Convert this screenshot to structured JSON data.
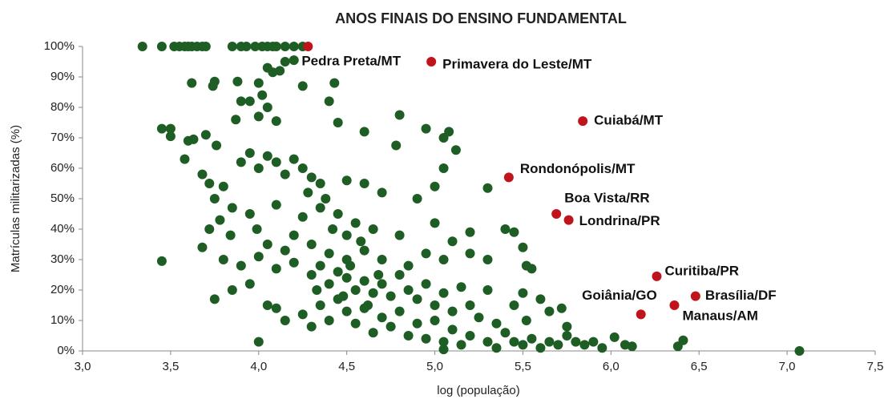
{
  "chart_data": {
    "type": "scatter",
    "title": "ANOS FINAIS DO ENSINO FUNDAMENTAL",
    "x_label": "log (população)",
    "y_label": "Matrículas militarizadas (%)",
    "xlim": [
      3,
      7.5
    ],
    "xticks": [
      {
        "value": 3,
        "label": "3,0"
      },
      {
        "value": 3.5,
        "label": "3,5"
      },
      {
        "value": 4,
        "label": "4,0"
      },
      {
        "value": 4.5,
        "label": "4,5"
      },
      {
        "value": 5,
        "label": "5,0"
      },
      {
        "value": 5.5,
        "label": "5,5"
      },
      {
        "value": 6,
        "label": "6,0"
      },
      {
        "value": 6.5,
        "label": "6,5"
      },
      {
        "value": 7,
        "label": "7,0"
      },
      {
        "value": 7.5,
        "label": "7,5"
      }
    ],
    "ylim": [
      0,
      100
    ],
    "yticks": [
      {
        "value": 0,
        "label": "0%"
      },
      {
        "value": 10,
        "label": "10%"
      },
      {
        "value": 20,
        "label": "20%"
      },
      {
        "value": 30,
        "label": "30%"
      },
      {
        "value": 40,
        "label": "40%"
      },
      {
        "value": 50,
        "label": "50%"
      },
      {
        "value": 60,
        "label": "60%"
      },
      {
        "value": 70,
        "label": "70%"
      },
      {
        "value": 80,
        "label": "80%"
      },
      {
        "value": 90,
        "label": "90%"
      },
      {
        "value": 100,
        "label": "100%"
      }
    ],
    "grid": false,
    "series": [
      {
        "color": "#1e5e24",
        "x": [
          3.34,
          3.45,
          3.52,
          3.55,
          3.58,
          3.6,
          3.62,
          3.65,
          3.68,
          3.7,
          3.85,
          3.9,
          3.93,
          3.98,
          4.02,
          4.05,
          4.08,
          4.1,
          4.15,
          4.2,
          4.25,
          4.2,
          4.15,
          4.05,
          4.08,
          4.12,
          3.62,
          3.75,
          3.74,
          3.88,
          4.0,
          4.25,
          4.43,
          3.95,
          3.9,
          4.02,
          4.4,
          4.05,
          4.0,
          4.8,
          3.87,
          4.1,
          4.45,
          3.45,
          3.5,
          3.5,
          3.63,
          3.7,
          3.6,
          3.76,
          4.6,
          4.95,
          5.08,
          5.05,
          5.12,
          4.78,
          3.58,
          3.68,
          3.72,
          3.8,
          3.9,
          3.95,
          4.0,
          4.05,
          4.1,
          4.15,
          4.2,
          4.25,
          4.3,
          4.35,
          4.5,
          4.6,
          4.7,
          4.9,
          5.0,
          5.05,
          5.3,
          3.75,
          3.85,
          3.95,
          4.1,
          4.25,
          4.35,
          4.45,
          4.55,
          4.65,
          4.8,
          5.0,
          5.1,
          5.4,
          5.45,
          5.2,
          3.78,
          3.72,
          3.84,
          3.99,
          4.05,
          4.15,
          4.2,
          4.3,
          4.4,
          4.5,
          4.6,
          4.7,
          4.85,
          4.95,
          5.05,
          5.2,
          5.3,
          5.5,
          5.52,
          5.55,
          3.45,
          3.68,
          3.8,
          3.9,
          4.0,
          4.1,
          4.2,
          4.3,
          4.35,
          4.4,
          4.45,
          4.5,
          4.55,
          4.6,
          4.65,
          4.7,
          4.75,
          4.8,
          4.85,
          4.9,
          4.95,
          5.0,
          5.05,
          5.1,
          5.15,
          5.2,
          5.25,
          5.3,
          5.35,
          5.45,
          5.5,
          5.52,
          5.6,
          5.65,
          5.72,
          5.75,
          5.8,
          3.75,
          3.85,
          3.95,
          4.05,
          4.1,
          4.15,
          4.25,
          4.3,
          4.35,
          4.4,
          4.45,
          4.5,
          4.55,
          4.6,
          4.65,
          4.7,
          4.75,
          4.8,
          4.85,
          4.9,
          4.95,
          5.0,
          5.05,
          5.1,
          5.15,
          5.2,
          5.3,
          5.35,
          5.4,
          5.45,
          5.5,
          5.55,
          5.6,
          5.65,
          5.7,
          5.75,
          5.85,
          5.9,
          5.95,
          6.02,
          6.08,
          6.12,
          6.38,
          6.41,
          7.07,
          4.0,
          5.05,
          4.5,
          4.38,
          4.42,
          4.28,
          4.48,
          4.52,
          4.62,
          4.58,
          4.68,
          4.33
        ],
        "values": [
          100,
          100,
          100,
          100,
          100,
          100,
          100,
          100,
          100,
          100,
          100,
          100,
          100,
          100,
          100,
          100,
          100,
          100,
          100,
          100,
          100,
          95.5,
          95,
          93,
          91.5,
          92,
          88,
          88.5,
          87,
          88.5,
          88,
          87,
          88,
          82,
          82,
          84,
          82,
          80,
          77,
          77.5,
          76,
          75.5,
          75,
          73,
          73,
          70.5,
          69.5,
          71,
          69,
          67.5,
          72,
          73,
          72,
          70,
          66,
          67.5,
          63,
          58,
          55,
          54,
          62,
          65,
          60,
          64,
          62,
          58,
          63,
          60,
          57,
          55,
          56,
          55,
          52,
          50,
          54,
          60,
          53.5,
          50,
          47,
          45,
          48,
          44,
          47,
          45,
          42,
          40,
          38,
          42,
          36,
          40,
          39,
          39,
          43,
          40,
          38,
          40,
          35,
          33,
          38,
          35,
          32,
          30,
          33,
          30,
          28,
          32,
          30,
          32,
          30,
          34,
          28,
          27,
          29.5,
          34,
          30,
          28,
          31,
          27,
          29,
          25,
          28,
          22,
          26,
          24,
          20,
          23,
          19,
          22,
          18,
          25,
          20,
          17,
          22,
          15,
          19,
          13,
          21,
          15,
          11,
          20,
          9,
          15,
          19,
          10,
          17,
          13,
          14,
          8,
          3,
          17,
          20,
          22,
          15,
          14,
          10,
          12,
          8,
          15,
          10,
          17,
          13,
          9,
          14,
          6,
          11,
          8,
          13,
          5,
          9,
          4,
          10,
          3,
          7,
          2,
          5,
          3,
          1,
          6,
          3,
          2,
          4,
          1,
          3,
          2,
          5,
          2,
          3,
          1,
          4.5,
          2,
          1.5,
          1.5,
          3.5,
          0,
          3,
          0.5,
          38,
          50,
          40,
          52,
          18,
          28,
          15,
          36,
          25,
          20
        ]
      },
      {
        "color": "#c0141c",
        "x": [
          4.28,
          4.98,
          5.84,
          5.42,
          5.69,
          5.76,
          6.26,
          6.48,
          6.36,
          6.17
        ],
        "values": [
          100,
          95,
          75.5,
          57,
          45,
          43,
          24.5,
          18,
          15,
          12
        ],
        "labels": [
          "Pedra Preta/MT",
          "Primavera do Leste/MT",
          "Cuiabá/MT",
          "Rondonópolis/MT",
          "Boa Vista/RR",
          "Londrina/PR",
          "Curitiba/PR",
          "Brasília/DF",
          "Manaus/AM",
          "Goiânia/GO"
        ]
      }
    ]
  }
}
